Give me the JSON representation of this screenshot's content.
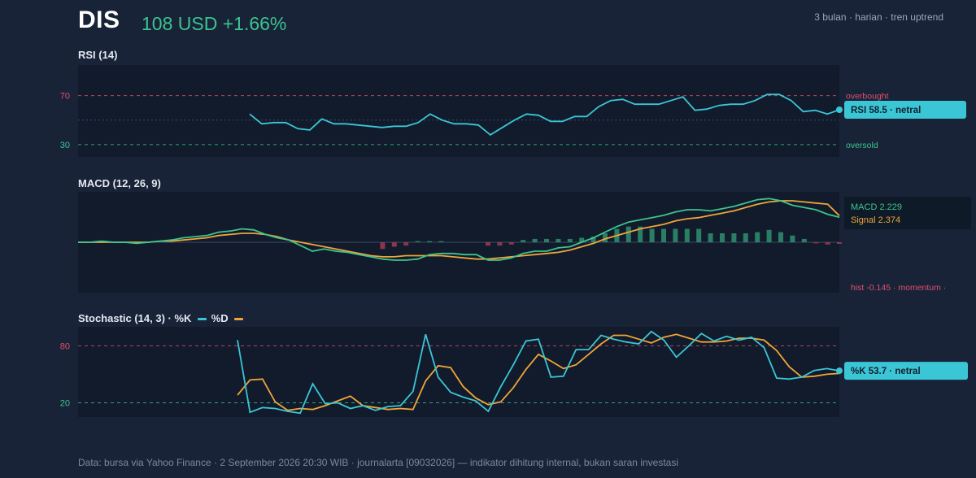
{
  "header": {
    "ticker": "DIS",
    "price_change": "108 USD +1.66%",
    "meta": "3 bulan · harian · tren uptrend"
  },
  "colors": {
    "background": "#182338",
    "panel": "#111b2b",
    "cyan": "#3bc6d6",
    "orange": "#f0a43a",
    "green": "#3cc48f",
    "red": "#e0506a",
    "hist_green": "#2f8f6e",
    "hist_red": "#a33a55"
  },
  "chart_data": [
    {
      "type": "line",
      "title": "RSI (14)",
      "ylim": [
        20,
        95
      ],
      "yticks": [
        70,
        30
      ],
      "levels": {
        "overbought": 70,
        "oversold": 30,
        "mid": 50
      },
      "zone_labels": {
        "overbought": "overbought",
        "oversold": "oversold"
      },
      "series": [
        {
          "values": [
            55,
            47,
            48,
            48,
            43,
            42,
            51,
            47,
            47,
            46,
            45,
            44,
            45,
            45,
            48,
            55,
            50,
            47,
            47,
            46,
            38,
            44,
            50,
            55,
            54,
            49,
            49,
            53,
            53,
            61,
            66,
            67,
            63,
            63,
            63,
            66,
            69,
            58,
            59,
            62,
            63,
            63,
            66,
            71,
            71,
            66,
            57,
            58,
            55,
            58.5
          ]
        }
      ],
      "badge": "RSI 58.5 · netral"
    },
    {
      "type": "line",
      "title": "MACD (12, 26, 9)",
      "ylim": [
        -4.5,
        4.5
      ],
      "series": [
        {
          "name": "MACD",
          "values": [
            0,
            0,
            0.1,
            0,
            0,
            -0.1,
            0,
            0.1,
            0.2,
            0.4,
            0.5,
            0.6,
            0.9,
            1.0,
            1.2,
            1.1,
            0.7,
            0.4,
            0.2,
            -0.3,
            -0.8,
            -0.6,
            -0.8,
            -0.9,
            -1.1,
            -1.3,
            -1.5,
            -1.6,
            -1.6,
            -1.5,
            -1.1,
            -1.0,
            -1.0,
            -1.1,
            -1.1,
            -1.6,
            -1.6,
            -1.4,
            -1.0,
            -0.8,
            -0.8,
            -0.5,
            -0.4,
            0.0,
            0.4,
            0.9,
            1.4,
            1.8,
            2.0,
            2.2,
            2.4,
            2.7,
            2.9,
            2.9,
            2.8,
            3.0,
            3.2,
            3.5,
            3.8,
            3.9,
            3.7,
            3.3,
            3.1,
            2.9,
            2.5,
            2.229
          ]
        },
        {
          "name": "Signal",
          "values": [
            0,
            0,
            0,
            0,
            0,
            0,
            0,
            0.1,
            0.1,
            0.2,
            0.3,
            0.4,
            0.6,
            0.7,
            0.8,
            0.8,
            0.7,
            0.5,
            0.2,
            0,
            -0.2,
            -0.4,
            -0.6,
            -0.8,
            -1.0,
            -1.2,
            -1.3,
            -1.3,
            -1.2,
            -1.2,
            -1.2,
            -1.2,
            -1.3,
            -1.4,
            -1.5,
            -1.5,
            -1.4,
            -1.3,
            -1.2,
            -1.1,
            -1.0,
            -0.9,
            -0.7,
            -0.4,
            -0.1,
            0.3,
            0.6,
            0.9,
            1.2,
            1.4,
            1.6,
            1.9,
            2.1,
            2.2,
            2.4,
            2.6,
            2.8,
            3.1,
            3.4,
            3.6,
            3.7,
            3.7,
            3.6,
            3.5,
            3.4,
            2.374
          ]
        },
        {
          "name": "hist",
          "values": [
            0,
            0,
            0,
            0,
            0,
            0,
            0,
            0,
            0,
            0,
            0,
            0,
            0,
            0,
            0,
            0,
            0,
            0,
            0,
            0,
            0,
            0,
            0,
            0,
            0,
            0,
            -0.6,
            -0.4,
            -0.3,
            0.1,
            0.1,
            0.1,
            0,
            0,
            0,
            -0.3,
            -0.3,
            -0.2,
            0.2,
            0.3,
            0.3,
            0.3,
            0.3,
            0.4,
            0.5,
            0.8,
            1.2,
            1.4,
            1.4,
            1.2,
            1.2,
            1.2,
            1.2,
            1.2,
            0.8,
            0.8,
            0.8,
            0.8,
            0.9,
            1.1,
            0.9,
            0.6,
            0.3,
            -0.1,
            -0.2,
            -0.145
          ]
        }
      ],
      "labels": {
        "macd": "MACD 2.229",
        "signal": "Signal 2.374",
        "hist": "hist -0.145 · momentum ·"
      }
    },
    {
      "type": "line",
      "title": "Stochastic (14, 3) · %K",
      "title_d": "%D",
      "ylim": [
        5,
        100
      ],
      "yticks": [
        80,
        20
      ],
      "levels": {
        "upper": 80,
        "lower": 20
      },
      "series": [
        {
          "name": "%K",
          "values": [
            86,
            10,
            15,
            14,
            11,
            9,
            40,
            19,
            20,
            14,
            17,
            12,
            16,
            17,
            32,
            92,
            47,
            31,
            26,
            22,
            11,
            37,
            60,
            85,
            87,
            47,
            48,
            76,
            76,
            91,
            87,
            84,
            82,
            95,
            86,
            68,
            80,
            93,
            85,
            90,
            86,
            89,
            78,
            46,
            45,
            47,
            54,
            56,
            53.7
          ]
        },
        {
          "name": "%D",
          "values": [
            28,
            44,
            45,
            21,
            12,
            14,
            13,
            17,
            22,
            27,
            17,
            15,
            13,
            14,
            13,
            43,
            59,
            57,
            37,
            25,
            18,
            21,
            36,
            55,
            71,
            64,
            56,
            60,
            71,
            82,
            91,
            91,
            87,
            83,
            89,
            92,
            88,
            84,
            84,
            85,
            88,
            88,
            86,
            75,
            58,
            47,
            48,
            50,
            51
          ]
        }
      ],
      "badge": "%K 53.7 · netral"
    }
  ],
  "footer": "Data: bursa via Yahoo Finance · 2 September 2026 20:30 WIB · journalarta [09032026] — indikator dihitung internal, bukan saran investasi"
}
